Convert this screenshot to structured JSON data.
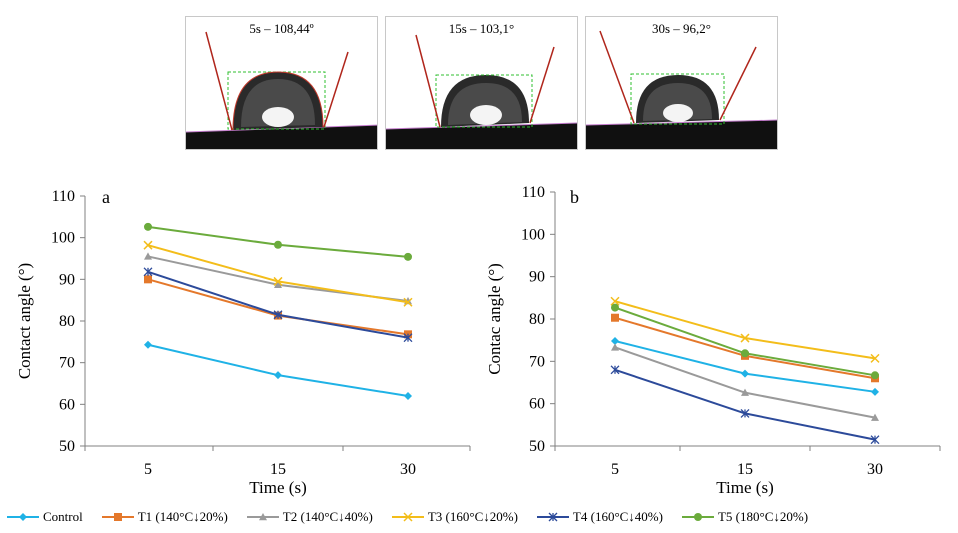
{
  "photos": [
    {
      "caption": "5s – 108,44º"
    },
    {
      "caption": "15s – 103,1°"
    },
    {
      "caption": "30s – 96,2°"
    }
  ],
  "chart_data": [
    {
      "type": "line",
      "panel_label": "a",
      "xlabel": "Time (s)",
      "ylabel": "Contact  angle (°)",
      "categories": [
        "5",
        "15",
        "30"
      ],
      "ylim": [
        50,
        110
      ],
      "yticks": [
        50,
        60,
        70,
        80,
        90,
        100,
        110
      ],
      "series": [
        {
          "name": "Control",
          "values": [
            74.3,
            67.0,
            62.0
          ]
        },
        {
          "name": "T1 (140°C↓20%)",
          "values": [
            90.0,
            81.3,
            76.8
          ]
        },
        {
          "name": "T2 (140°C↓40%)",
          "values": [
            95.5,
            88.7,
            84.8
          ]
        },
        {
          "name": "T3 (160°C↓20%)",
          "values": [
            98.2,
            89.5,
            84.5
          ]
        },
        {
          "name": "T4 (160°C↓40%)",
          "values": [
            91.8,
            81.5,
            76.0
          ]
        },
        {
          "name": "T5 (180°C↓20%)",
          "values": [
            102.6,
            98.3,
            95.4
          ]
        }
      ]
    },
    {
      "type": "line",
      "panel_label": "b",
      "xlabel": "Time (s)",
      "ylabel": "Contac  angle (°)",
      "categories": [
        "5",
        "15",
        "30"
      ],
      "ylim": [
        50,
        110
      ],
      "yticks": [
        50,
        60,
        70,
        80,
        90,
        100,
        110
      ],
      "series": [
        {
          "name": "Control",
          "values": [
            74.8,
            67.1,
            62.8
          ]
        },
        {
          "name": "T1 (140°C↓20%)",
          "values": [
            80.3,
            71.3,
            66.0
          ]
        },
        {
          "name": "T2 (140°C↓40%)",
          "values": [
            73.3,
            62.6,
            56.7
          ]
        },
        {
          "name": "T3 (160°C↓20%)",
          "values": [
            84.2,
            75.5,
            70.7
          ]
        },
        {
          "name": "T4 (160°C↓40%)",
          "values": [
            68.0,
            57.7,
            51.5
          ]
        },
        {
          "name": "T5 (180°C↓20%)",
          "values": [
            82.7,
            71.9,
            66.7
          ]
        }
      ]
    }
  ],
  "series_styles": [
    {
      "color": "#1fb2e6",
      "marker": "diamond"
    },
    {
      "color": "#e4782b",
      "marker": "square"
    },
    {
      "color": "#9a9a9a",
      "marker": "triangle"
    },
    {
      "color": "#f3bd1a",
      "marker": "x"
    },
    {
      "color": "#2c4a9a",
      "marker": "star"
    },
    {
      "color": "#6bab3c",
      "marker": "circle"
    }
  ]
}
